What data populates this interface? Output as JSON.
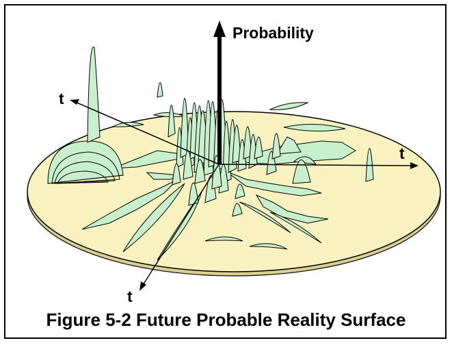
{
  "figure": {
    "caption": "Figure 5-2  Future Probable Reality Surface",
    "labels": {
      "vertical_axis": "Probability",
      "axis_left": "t",
      "axis_right": "t",
      "axis_bottom": "t"
    }
  },
  "colors": {
    "disk_fill": "#f8f2c0",
    "disk_edge": "#d8cf90",
    "peak_fill": "#c8f0cc",
    "line": "#000000"
  }
}
